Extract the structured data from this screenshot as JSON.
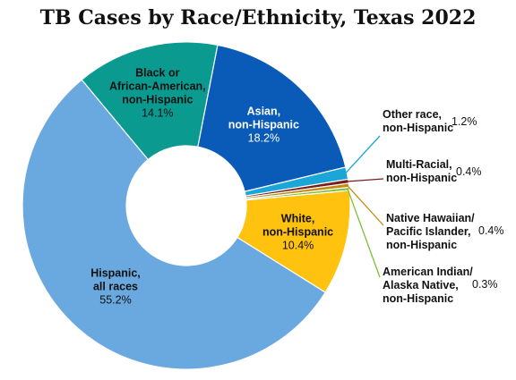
{
  "chart_data": {
    "type": "pie",
    "title": "TB Cases by Race/Ethnicity, Texas 2022",
    "slices": [
      {
        "label": [
          "Asian,",
          "non-Hispanic"
        ],
        "value": 18.2,
        "value_text": "18.2%",
        "color": "#0a5ab8"
      },
      {
        "label": [
          "Other race,",
          "non-Hispanic"
        ],
        "value": 1.2,
        "value_text": "1.2%",
        "color": "#1aa7d8"
      },
      {
        "label": [
          "Multi-Racial,",
          "non-Hispanic"
        ],
        "value": 0.4,
        "value_text": "0.4%",
        "color": "#7a1d1d"
      },
      {
        "label": [
          "Native Hawaiian/",
          "Pacific Islander,",
          "non-Hispanic"
        ],
        "value": 0.4,
        "value_text": "0.4%",
        "color": "#c58a10"
      },
      {
        "label": [
          "American Indian/",
          "Alaska Native,",
          "non-Hispanic"
        ],
        "value": 0.3,
        "value_text": "0.3%",
        "color": "#7cbf3a"
      },
      {
        "label": [
          "White,",
          "non-Hispanic"
        ],
        "value": 10.4,
        "value_text": "10.4%",
        "color": "#ffc20e"
      },
      {
        "label": [
          "Hispanic,",
          "all races"
        ],
        "value": 55.2,
        "value_text": "55.2%",
        "color": "#6aa9e0"
      },
      {
        "label": [
          "Black or",
          "African-American,",
          "non-Hispanic"
        ],
        "value": 14.1,
        "value_text": "14.1%",
        "color": "#0a9a8f"
      }
    ]
  }
}
